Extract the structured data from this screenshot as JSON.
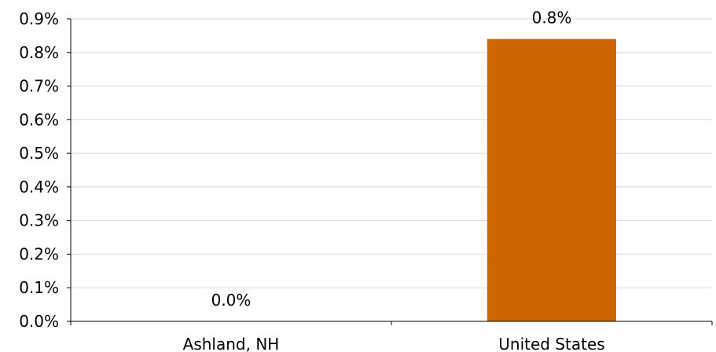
{
  "chart_data": {
    "type": "bar",
    "categories": [
      "Ashland, NH",
      "United States"
    ],
    "values": [
      0.0,
      0.84
    ],
    "data_labels": [
      "0.0%",
      "0.8%"
    ],
    "y_tick_values": [
      0,
      0.1,
      0.2,
      0.3,
      0.4,
      0.5,
      0.6,
      0.7,
      0.8,
      0.9
    ],
    "y_tick_labels": [
      "0.0%",
      "0.1%",
      "0.2%",
      "0.3%",
      "0.4%",
      "0.5%",
      "0.6%",
      "0.7%",
      "0.8%",
      "0.9%"
    ],
    "ylim": [
      0,
      0.9
    ],
    "grid": true,
    "legend": "none",
    "bar_color": "#cc6600"
  }
}
